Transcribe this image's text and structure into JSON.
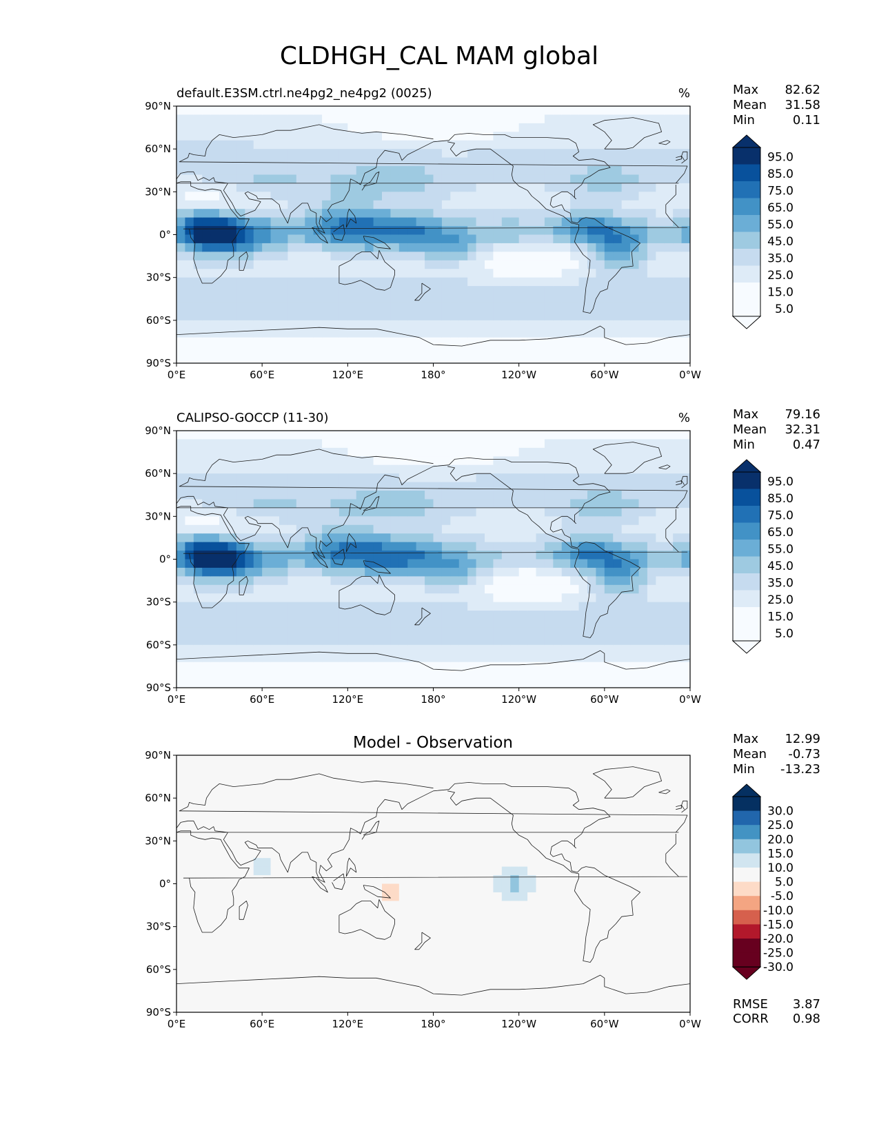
{
  "page_title": "CLDHGH_CAL MAM global",
  "axes": {
    "lat_ticks": [
      "90°N",
      "60°N",
      "30°N",
      "0°",
      "30°S",
      "60°S",
      "90°S"
    ],
    "lon_ticks": [
      "0°E",
      "60°E",
      "120°E",
      "180°",
      "120°W",
      "60°W",
      "0°W"
    ]
  },
  "panels": [
    {
      "id": "model",
      "title_left": "default.E3SM.ctrl.ne4pg2_ne4pg2 (0025)",
      "title_right": "%",
      "title_center": "",
      "stats": [
        {
          "label": "Max",
          "value": "82.62"
        },
        {
          "label": "Mean",
          "value": "31.58"
        },
        {
          "label": "Min",
          "value": "0.11"
        }
      ],
      "colorbar_ticks": [
        "95.0",
        "85.0",
        "75.0",
        "65.0",
        "55.0",
        "45.0",
        "35.0",
        "25.0",
        "15.0",
        "5.0"
      ],
      "field": "model",
      "colors": [
        "#f7fbff",
        "#deebf7",
        "#c6dbef",
        "#9ecae1",
        "#6baed6",
        "#4292c6",
        "#2171b5",
        "#08519c",
        "#08306b"
      ]
    },
    {
      "id": "obs",
      "title_left": "CALIPSO-GOCCP (11-30)",
      "title_right": "%",
      "title_center": "",
      "stats": [
        {
          "label": "Max",
          "value": "79.16"
        },
        {
          "label": "Mean",
          "value": "32.31"
        },
        {
          "label": "Min",
          "value": "0.47"
        }
      ],
      "colorbar_ticks": [
        "95.0",
        "85.0",
        "75.0",
        "65.0",
        "55.0",
        "45.0",
        "35.0",
        "25.0",
        "15.0",
        "5.0"
      ],
      "field": "obs",
      "colors": [
        "#f7fbff",
        "#deebf7",
        "#c6dbef",
        "#9ecae1",
        "#6baed6",
        "#4292c6",
        "#2171b5",
        "#08519c",
        "#08306b"
      ]
    },
    {
      "id": "diff",
      "title_left": "",
      "title_right": "",
      "title_center": "Model - Observation",
      "stats": [
        {
          "label": "Max",
          "value": "12.99"
        },
        {
          "label": "Mean",
          "value": "-0.73"
        },
        {
          "label": "Min",
          "value": "-13.23"
        }
      ],
      "colorbar_ticks": [
        "30.0",
        "25.0",
        "20.0",
        "15.0",
        "10.0",
        "5.0",
        "-5.0",
        "-10.0",
        "-15.0",
        "-20.0",
        "-25.0",
        "-30.0"
      ],
      "field": "diff",
      "colors": [
        "#67001f",
        "#b2182b",
        "#d6604d",
        "#f4a582",
        "#fddbc7",
        "#f7f7f7",
        "#d1e5f0",
        "#92c5de",
        "#4393c3",
        "#2166ac",
        "#053061"
      ],
      "footer_stats": [
        {
          "label": "RMSE",
          "value": "3.87"
        },
        {
          "label": "CORR",
          "value": "0.98"
        }
      ]
    }
  ]
}
